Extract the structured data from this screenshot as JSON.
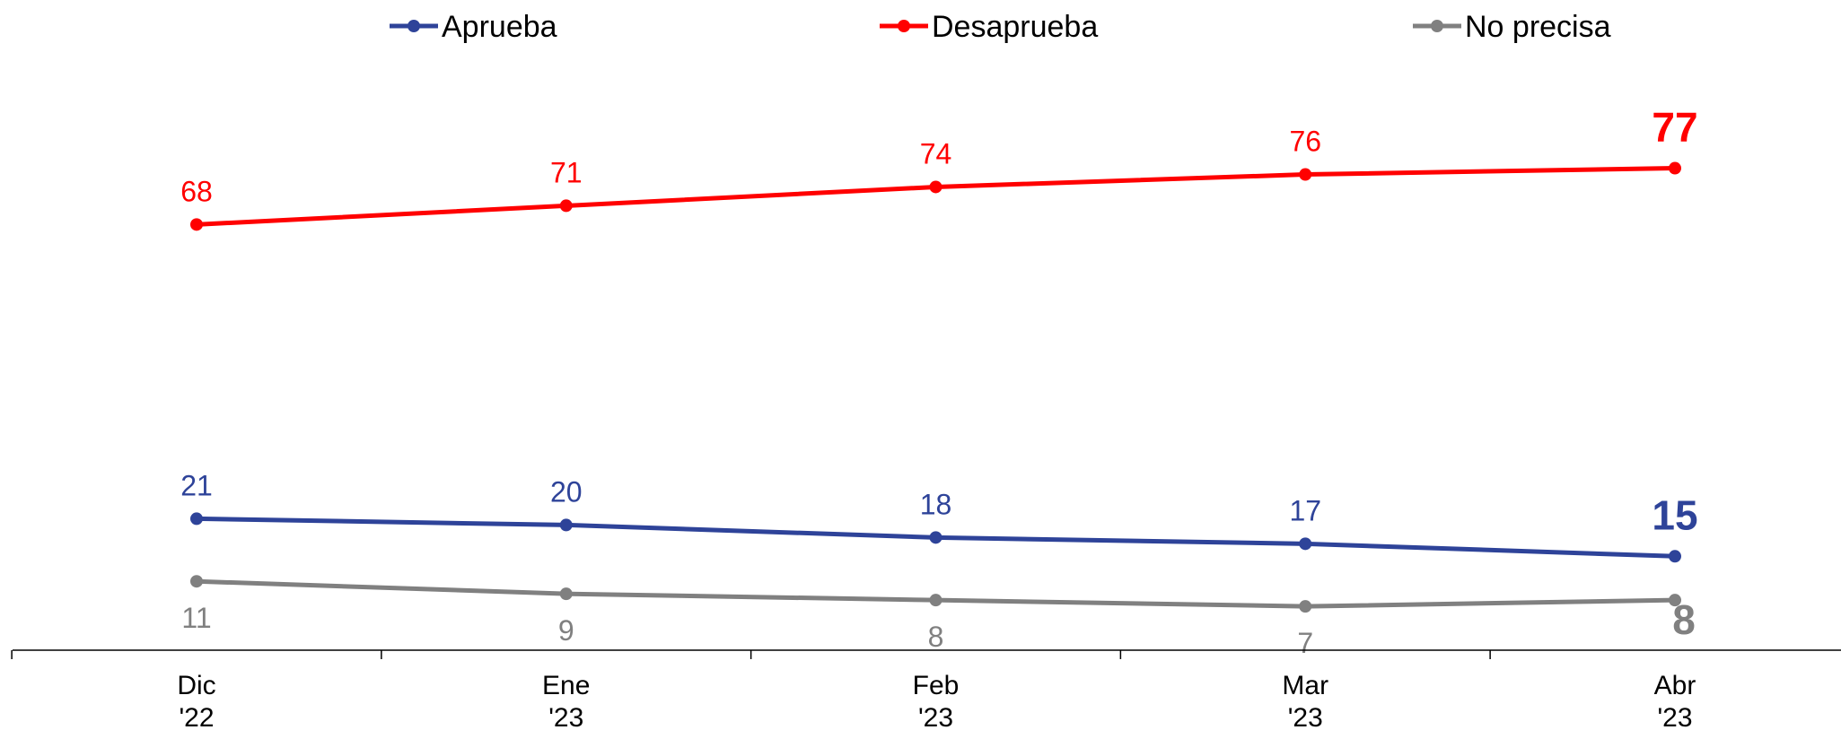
{
  "chart_data": {
    "type": "line",
    "categories": [
      [
        "Dic",
        "'22"
      ],
      [
        "Ene",
        "'23"
      ],
      [
        "Feb",
        "'23"
      ],
      [
        "Mar",
        "'23"
      ],
      [
        "Abr",
        "'23"
      ]
    ],
    "series": [
      {
        "name": "Aprueba",
        "color": "#2E4399",
        "values": [
          21,
          20,
          18,
          17,
          15
        ],
        "label_position": "above"
      },
      {
        "name": "Desaprueba",
        "color": "#FF0000",
        "values": [
          68,
          71,
          74,
          76,
          77
        ],
        "label_position": "above"
      },
      {
        "name": "No precisa",
        "color": "#808080",
        "values": [
          11,
          9,
          8,
          7,
          8
        ],
        "label_position": "below"
      }
    ],
    "title": "",
    "xlabel": "",
    "ylabel": "",
    "ylim": [
      0,
      85
    ],
    "grid": false,
    "legend": "top",
    "last_point_labels_bold": true
  }
}
